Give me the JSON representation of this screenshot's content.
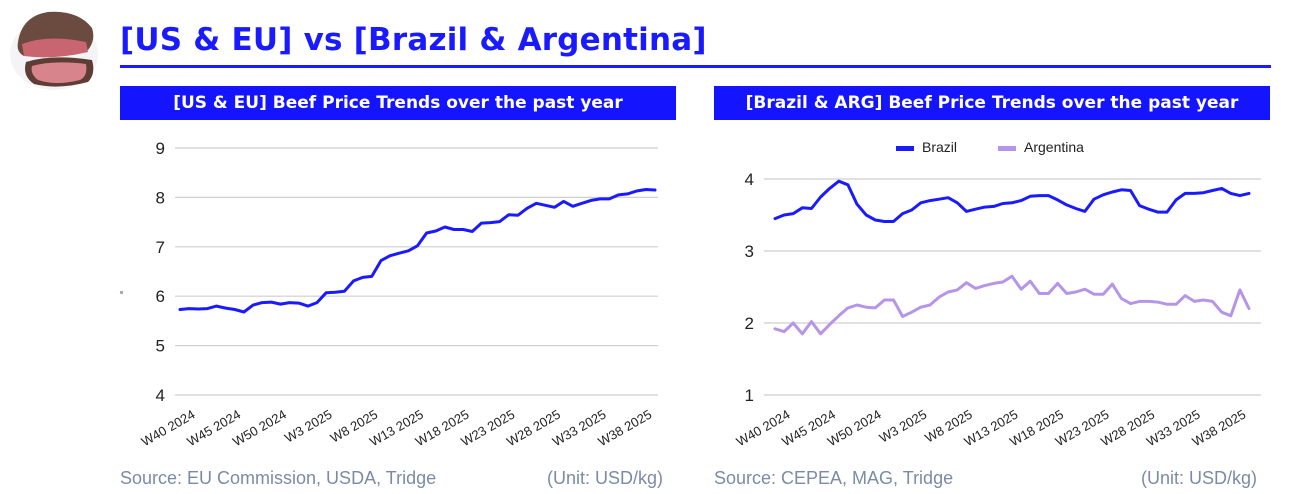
{
  "header": {
    "title": "[US & EU] vs [Brazil & Argentina]",
    "logo_icon": "roast-beef-image",
    "accent_color": "#1a1aff"
  },
  "panels": [
    {
      "heading": "[US & EU] Beef Price Trends over the past year",
      "source": "Source: EU Commission, USDA, Tridge",
      "unit": "(Unit: USD/kg)"
    },
    {
      "heading": "[Brazil & ARG] Beef Price Trends over the past year",
      "source": "Source: CEPEA, MAG, Tridge",
      "unit": "(Unit: USD/kg)"
    }
  ],
  "chart_data": [
    {
      "type": "line",
      "title": "[US & EU] Beef Price Trends over the past year",
      "xlabel": "",
      "ylabel": "",
      "ylim": [
        4,
        9
      ],
      "yticks": [
        4,
        5,
        6,
        7,
        8,
        9
      ],
      "grid": true,
      "legend": "none",
      "x_tick_labels": [
        "W40 2024",
        "W45 2024",
        "W50 2024",
        "W3 2025",
        "W8 2025",
        "W13 2025",
        "W18 2025",
        "W23 2025",
        "W28 2025",
        "W33 2025",
        "W38 2025"
      ],
      "x_tick_every": 5,
      "series": [
        {
          "name": "US & EU",
          "color": "#1a1aff",
          "values": [
            5.73,
            5.75,
            5.74,
            5.75,
            5.8,
            5.76,
            5.73,
            5.68,
            5.82,
            5.87,
            5.88,
            5.84,
            5.87,
            5.86,
            5.8,
            5.87,
            6.07,
            6.08,
            6.1,
            6.31,
            6.38,
            6.4,
            6.72,
            6.82,
            6.87,
            6.92,
            7.02,
            7.28,
            7.32,
            7.4,
            7.35,
            7.35,
            7.31,
            7.48,
            7.49,
            7.51,
            7.65,
            7.64,
            7.78,
            7.88,
            7.84,
            7.8,
            7.92,
            7.82,
            7.88,
            7.94,
            7.97,
            7.97,
            8.05,
            8.07,
            8.13,
            8.16,
            8.15
          ]
        }
      ]
    },
    {
      "type": "line",
      "title": "[Brazil & ARG] Beef Price Trends over the past year",
      "xlabel": "",
      "ylabel": "",
      "ylim": [
        1,
        4
      ],
      "yticks": [
        1,
        2,
        3,
        4
      ],
      "grid": true,
      "legend": "top-center",
      "x_tick_labels": [
        "W40 2024",
        "W45 2024",
        "W50 2024",
        "W3 2025",
        "W8 2025",
        "W13 2025",
        "W18 2025",
        "W23 2025",
        "W28 2025",
        "W33 2025",
        "W38 2025"
      ],
      "x_tick_every": 5,
      "series": [
        {
          "name": "Brazil",
          "color": "#1a1aff",
          "values": [
            3.45,
            3.5,
            3.52,
            3.6,
            3.59,
            3.75,
            3.87,
            3.97,
            3.92,
            3.65,
            3.5,
            3.43,
            3.41,
            3.41,
            3.52,
            3.57,
            3.67,
            3.7,
            3.72,
            3.74,
            3.67,
            3.55,
            3.58,
            3.61,
            3.62,
            3.66,
            3.67,
            3.7,
            3.76,
            3.77,
            3.77,
            3.71,
            3.64,
            3.59,
            3.55,
            3.72,
            3.78,
            3.82,
            3.85,
            3.84,
            3.63,
            3.58,
            3.54,
            3.54,
            3.71,
            3.8,
            3.8,
            3.81,
            3.84,
            3.87,
            3.8,
            3.77,
            3.8
          ]
        },
        {
          "name": "Argentina",
          "color": "#b695e8",
          "values": [
            1.92,
            1.88,
            2.0,
            1.85,
            2.02,
            1.85,
            1.98,
            2.1,
            2.21,
            2.25,
            2.22,
            2.21,
            2.32,
            2.32,
            2.09,
            2.15,
            2.22,
            2.25,
            2.36,
            2.43,
            2.46,
            2.56,
            2.48,
            2.52,
            2.55,
            2.57,
            2.65,
            2.47,
            2.58,
            2.41,
            2.41,
            2.55,
            2.41,
            2.43,
            2.47,
            2.4,
            2.4,
            2.54,
            2.34,
            2.27,
            2.3,
            2.3,
            2.29,
            2.26,
            2.26,
            2.38,
            2.3,
            2.32,
            2.3,
            2.15,
            2.1,
            2.46,
            2.2
          ]
        }
      ]
    }
  ]
}
